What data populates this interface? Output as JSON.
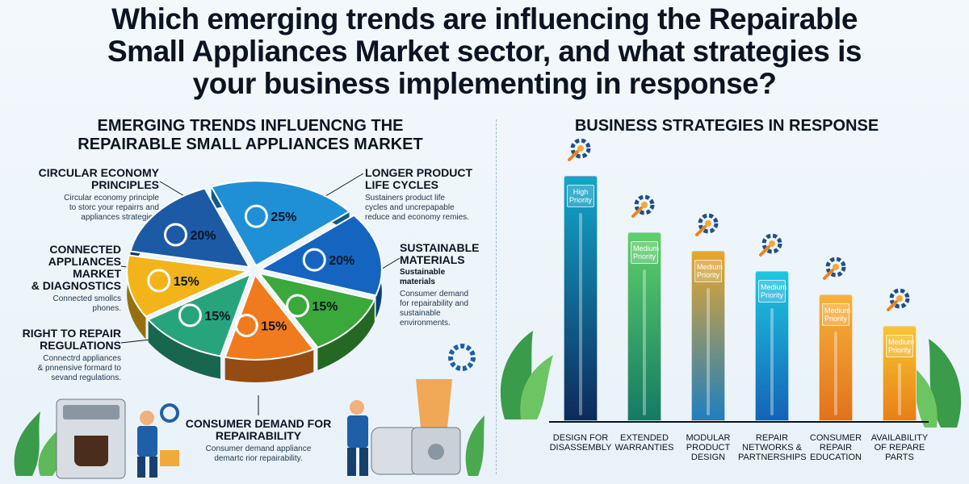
{
  "title": {
    "line1": "Which emerging trends are influencing the Repairable",
    "line2": "Small Appliances Market sector, and what strategies is",
    "line3": "your business implementing in response?"
  },
  "left": {
    "title_line1": "EMERGING TRENDS INFLUENCNG THE",
    "title_line2": "REPAIRABLE SMALL APPLIANCES MARKET",
    "callouts": [
      {
        "heading_line1": "CIRCULAR ECONOMY",
        "heading_line2": "PRINCIPLES",
        "desc_line1": "Circular economy principle",
        "desc_line2": "to storc your repairrs and",
        "desc_line3": "appliances strategies."
      },
      {
        "heading_line1": "CONNECTED",
        "heading_line2": "APPLIANCES",
        "heading_line3": "MARKET",
        "heading_line4": "& DIAGNOSTICS",
        "desc_line1": "Connected smollcs",
        "desc_line2": "phones."
      },
      {
        "heading_line1": "RIGHT TO REPAIR",
        "heading_line2": "REGULATIONS",
        "desc_line1": "Connectrd appliances",
        "desc_line2": "& pnnensive formard to",
        "desc_line3": "sevand regulations."
      },
      {
        "heading_line1": "LONGER PRODUCT",
        "heading_line2": "LIFE CYCLES",
        "desc_line1": "Sustainers product life",
        "desc_line2": "cycles and uncrepapable",
        "desc_line3": "reduce and economy remies."
      },
      {
        "heading_line1": "SUSTAINABLE",
        "heading_line2": "MATERIALS",
        "sub_line1": "Sustainable",
        "sub_line2": "materials",
        "desc_line1": "Consumer demand",
        "desc_line2": "for repairability and",
        "desc_line3": "sustainable",
        "desc_line4": "environments."
      },
      {
        "heading_line1": "CONSUMER DEMAND FOR",
        "heading_line2": "REPAIRABILITY",
        "desc_line1": "Consumer demand appliance",
        "desc_line2": "demartc rior repairability."
      }
    ]
  },
  "chart_data": [
    {
      "type": "pie",
      "title": "EMERGING TRENDS INFLUENCNG THE REPAIRABLE SMALL APPLIANCES MARKET",
      "slices": [
        {
          "label": "CIRCULAR ECONOMY PRINCIPLES",
          "value": 25,
          "display": "25%",
          "color": "#1f8fd6",
          "icon": "gear-cycle-icon"
        },
        {
          "label": "LONGER PRODUCT LIFE CYCLES",
          "value": 20,
          "display": "20%",
          "color": "#1565c0",
          "icon": "recycle-icon"
        },
        {
          "label": "SUSTAINABLE MATERIALS",
          "value": 15,
          "display": "15%",
          "color": "#3aa83a",
          "icon": "leaf-icon"
        },
        {
          "label": "SUSTAINABLE MATERIALS / CONSUMER DEMAND",
          "value": 15,
          "display": "15%",
          "color": "#f07b1f",
          "icon": "tools-icon"
        },
        {
          "label": "CONSUMER DEMAND FOR REPAIRABILITY",
          "value": 15,
          "display": "15%",
          "color": "#27a47c",
          "icon": "gear-icon"
        },
        {
          "label": "RIGHT TO REPAIR REGULATIONS",
          "value": 15,
          "display": "15%",
          "color": "#f2b41a",
          "icon": "touch-gear-icon"
        },
        {
          "label": "CONNECTED APPLIANCES MARKET & DIAGNOSTICS",
          "value": 20,
          "display": "20%",
          "color": "#1d5aa6",
          "icon": "phone-icon"
        }
      ]
    },
    {
      "type": "bar",
      "title": "BUSINESS STRATEGIES IN RESPONSE",
      "categories": [
        {
          "line1": "DESIGN FOR",
          "line2": "DISASSEMBLY",
          "line3": ""
        },
        {
          "line1": "EXTENDED",
          "line2": "WARRANTIES",
          "line3": ""
        },
        {
          "line1": "MODULAR",
          "line2": "PRODUCT",
          "line3": "DESIGN"
        },
        {
          "line1": "REPAIR",
          "line2": "NETWORKS &",
          "line3": "PARTNERSHIPS"
        },
        {
          "line1": "CONSUMER",
          "line2": "REPAIR",
          "line3": "EDUCATION"
        },
        {
          "line1": "AVAILABILITY",
          "line2": "OF REPARE",
          "line3": "PARTS"
        }
      ],
      "values": [
        0.95,
        0.73,
        0.66,
        0.58,
        0.49,
        0.37
      ],
      "priority_line1": [
        "High",
        "Medium",
        "Medium",
        "Medium",
        "Medium",
        "Medium"
      ],
      "priority_line2": [
        "Priority",
        "Priority",
        "Priority",
        "Priority",
        "Priority",
        "Priority"
      ],
      "colors": [
        [
          "#0e2a5a",
          "#13a6c9"
        ],
        [
          "#147a63",
          "#5fd06a"
        ],
        [
          "#1e7fbf",
          "#eaa62a"
        ],
        [
          "#1463b5",
          "#1dc6e0"
        ],
        [
          "#e2721b",
          "#f6b23a"
        ],
        [
          "#e87f18",
          "#f7c52f"
        ]
      ],
      "icons": [
        "wrench-screwdriver-icon",
        "screwdriver-wrench-icon",
        "gear-wrench-icon",
        "gear-circle-icon",
        "hands-gear-icon",
        "gear-cycle-icon"
      ]
    }
  ]
}
